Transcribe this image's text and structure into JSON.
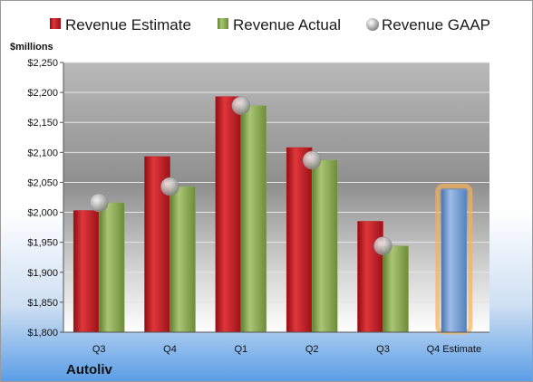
{
  "company": "Autoliv",
  "chart_data": {
    "type": "bar",
    "unit_label": "$millions",
    "categories": [
      "Q3",
      "Q4",
      "Q1",
      "Q2",
      "Q3",
      "Q4 Estimate"
    ],
    "series": [
      {
        "name": "Revenue Estimate",
        "values": [
          2003,
          2093,
          2193,
          2108,
          1985,
          null
        ]
      },
      {
        "name": "Revenue Actual",
        "values": [
          2016,
          2043,
          2178,
          2087,
          1944,
          null
        ]
      },
      {
        "name": "Revenue GAAP",
        "values": [
          2016,
          2043,
          2178,
          2087,
          1944,
          null
        ]
      }
    ],
    "forecast": {
      "category": "Q4 Estimate",
      "value": 2038
    },
    "y_ticks": [
      "$1,800",
      "$1,850",
      "$1,900",
      "$1,950",
      "$2,000",
      "$2,050",
      "$2,100",
      "$2,150",
      "$2,200",
      "$2,250"
    ],
    "ylim": [
      1800,
      2250
    ],
    "legend_position": "top",
    "grid": true,
    "colors": {
      "estimate": "#c0171d",
      "actual": "#8aab52",
      "gaap": "#b8b8b8",
      "forecast": "#6e98d1",
      "forecast_glow": "#f6b25a"
    }
  }
}
